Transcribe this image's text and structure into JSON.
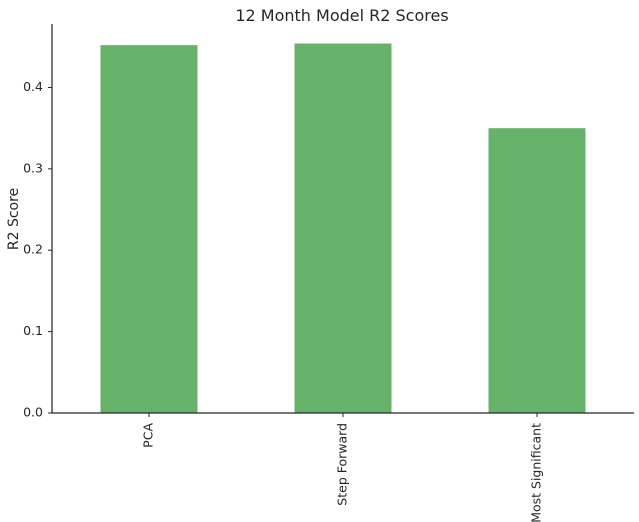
{
  "chart_data": {
    "type": "bar",
    "title": "12 Month Model R2 Scores",
    "xlabel": "",
    "ylabel": "R2 Score",
    "categories": [
      "PCA",
      "Step Forward",
      "Most Significant"
    ],
    "values": [
      0.452,
      0.454,
      0.35
    ],
    "ylim": [
      0,
      0.478
    ],
    "yticks": [
      "0.0",
      "0.1",
      "0.2",
      "0.3",
      "0.4"
    ],
    "grid": false,
    "bar_color": "#67b26a",
    "axis_color": "#262626"
  }
}
